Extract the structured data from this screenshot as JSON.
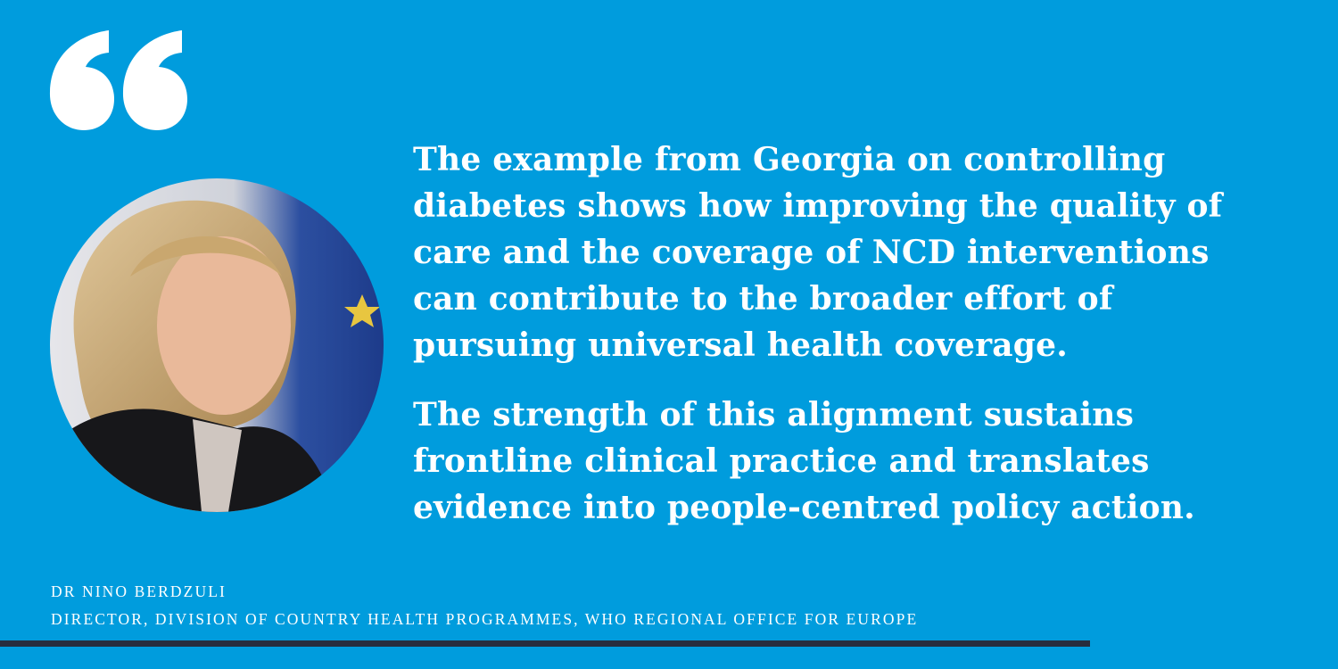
{
  "colors": {
    "background": "#009cdd",
    "text": "#ffffff",
    "bar": "#272d3e"
  },
  "quote": {
    "paragraphs": [
      {
        "lines": [
          "The example from Georgia on controlling",
          "diabetes shows how improving the quality of",
          "care and the coverage of NCD interventions",
          "can contribute to the broader effort of",
          "pursuing universal health coverage."
        ]
      },
      {
        "lines": [
          "The strength of this alignment sustains",
          "frontline clinical practice and translates",
          "evidence into people-centred policy action."
        ]
      }
    ]
  },
  "attribution": {
    "name": "DR NINO BERDZULI",
    "title": "DIRECTOR, DIVISION OF COUNTRY HEALTH PROGRAMMES, WHO REGIONAL OFFICE FOR EUROPE"
  },
  "icons": {
    "quote": "quote-mark-icon"
  }
}
